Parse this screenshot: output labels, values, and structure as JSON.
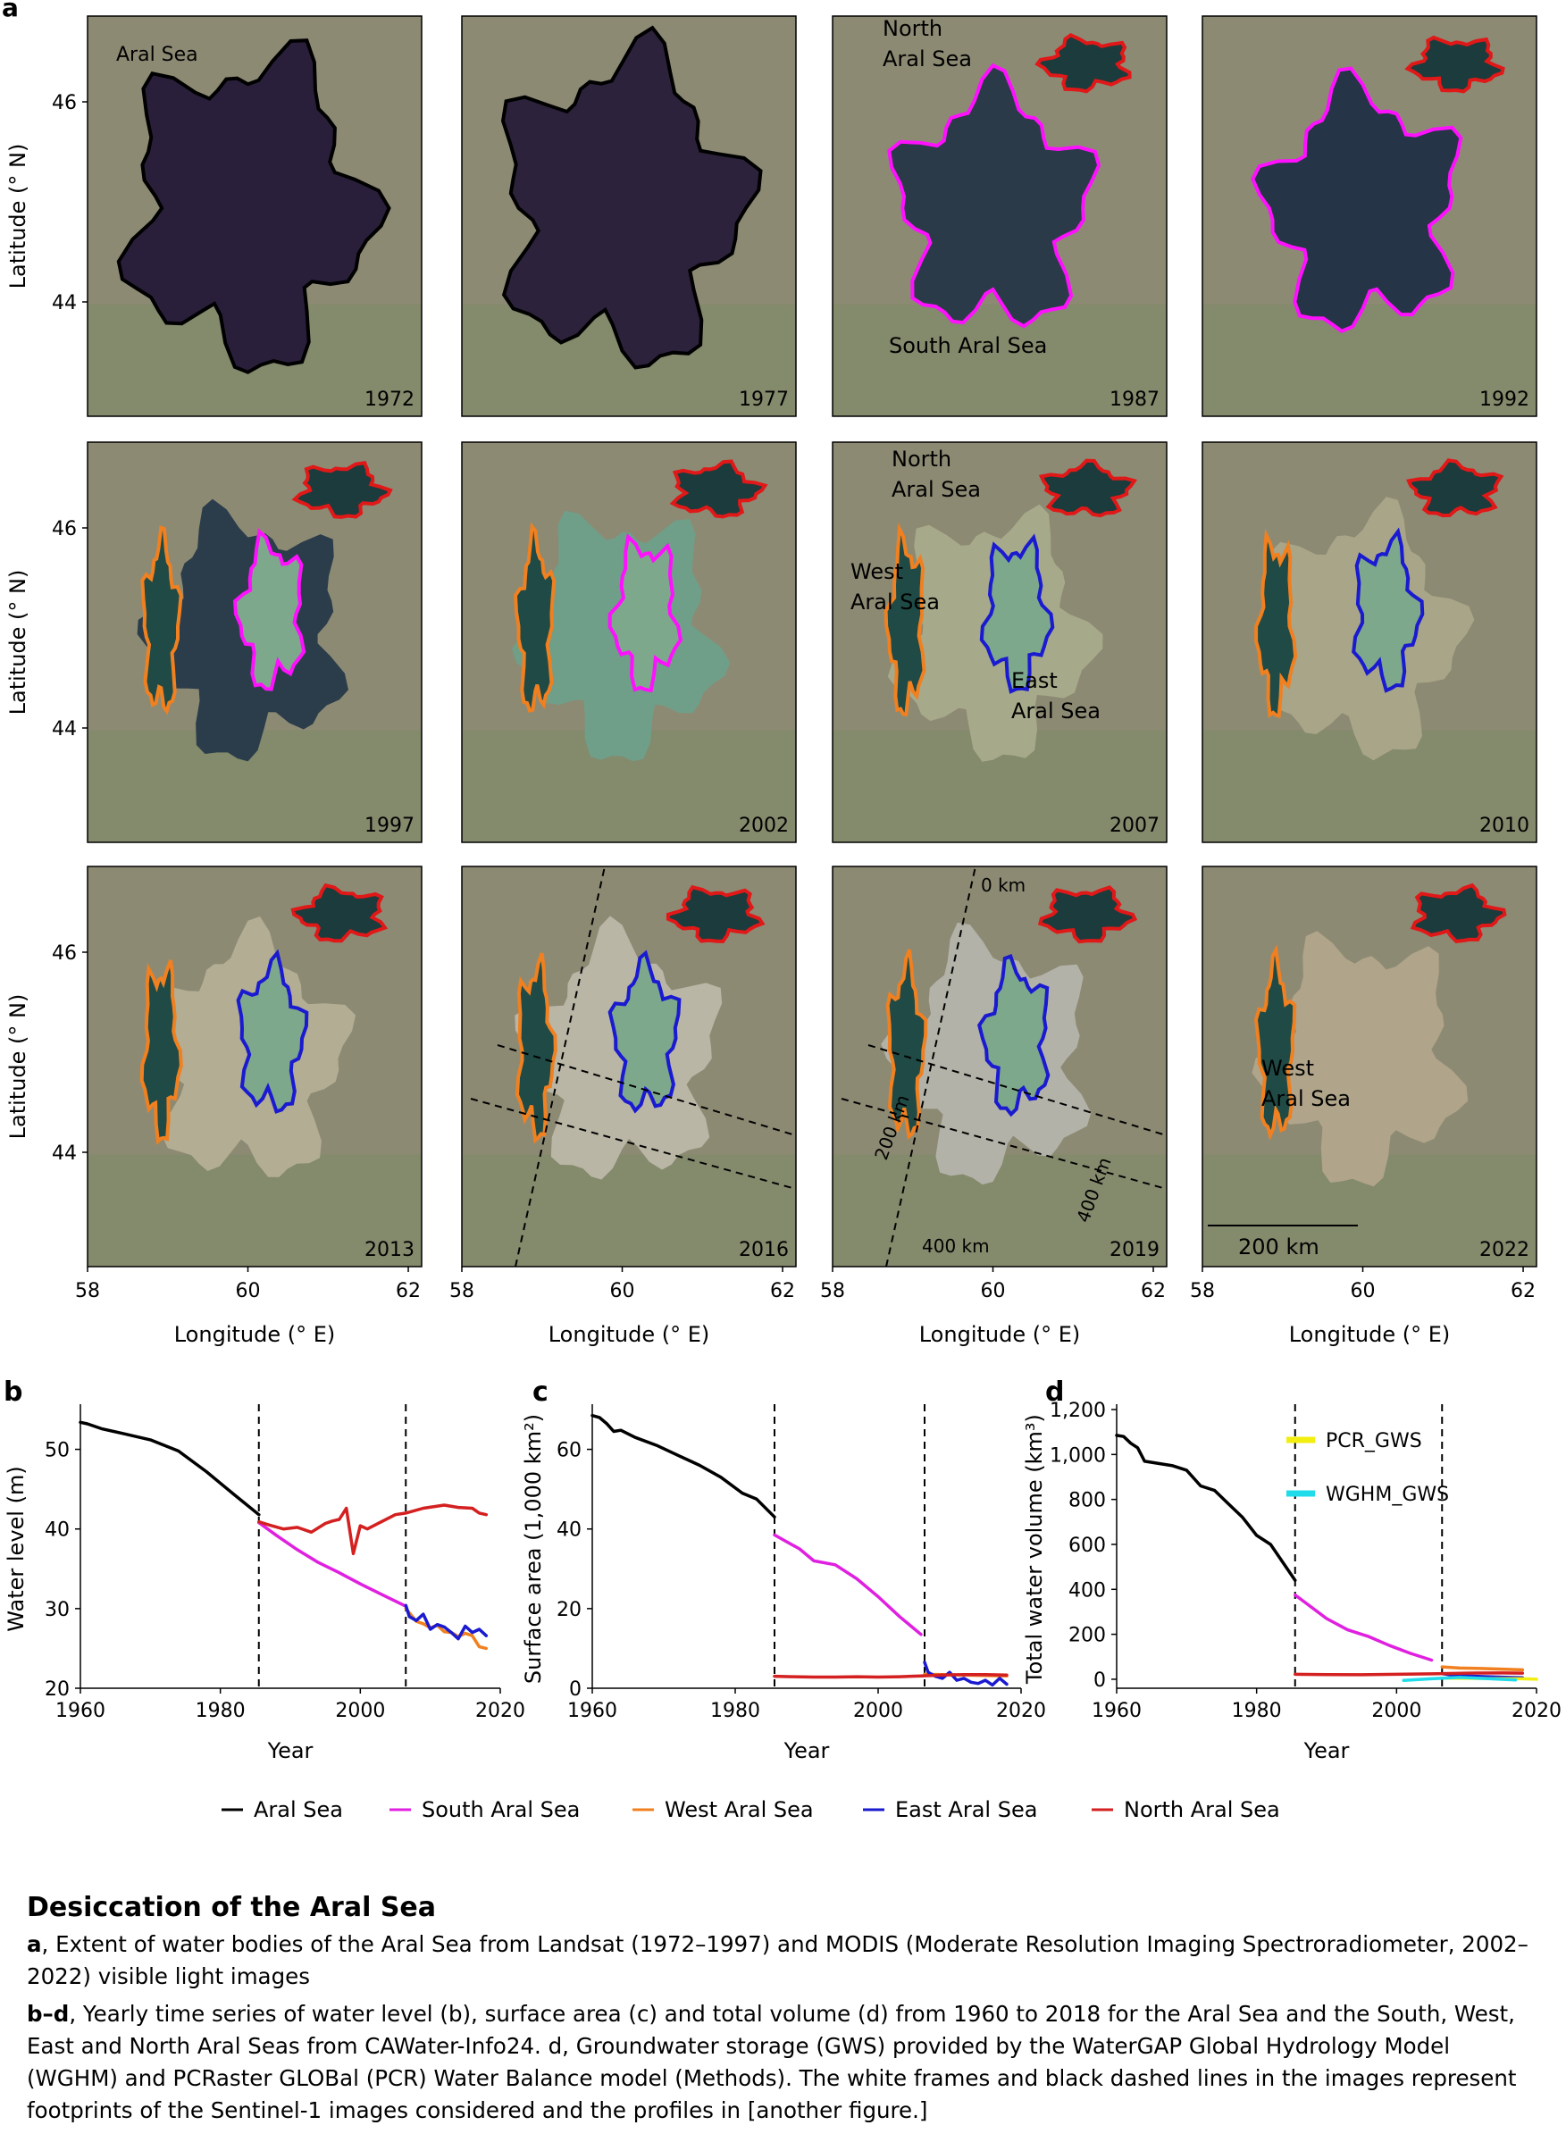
{
  "panel_a": {
    "label": "a",
    "tiles": [
      {
        "year": "1972",
        "labels": [
          "Aral Sea"
        ]
      },
      {
        "year": "1977",
        "labels": []
      },
      {
        "year": "1987",
        "labels": [
          "North",
          "Aral Sea",
          "South Aral Sea"
        ]
      },
      {
        "year": "1992",
        "labels": []
      },
      {
        "year": "1997",
        "labels": []
      },
      {
        "year": "2002",
        "labels": []
      },
      {
        "year": "2007",
        "labels": [
          "North",
          "Aral Sea",
          "West",
          "Aral Sea",
          "East",
          "Aral Sea"
        ]
      },
      {
        "year": "2010",
        "labels": []
      },
      {
        "year": "2013",
        "labels": []
      },
      {
        "year": "2016",
        "labels": []
      },
      {
        "year": "2019",
        "labels": [
          "0 km",
          "200 km",
          "400 km",
          "400 km"
        ]
      },
      {
        "year": "2022",
        "labels": [
          "West",
          "Aral Sea",
          "200 km"
        ]
      }
    ],
    "lat_ticks": [
      "46",
      "44"
    ],
    "lat_label": "Latitude (° N)",
    "lon_ticks": [
      "58",
      "60",
      "62"
    ],
    "lon_label": "Longitude (° E)"
  },
  "chart_data": [
    {
      "panel": "b",
      "type": "line",
      "xlabel": "Year",
      "ylabel": "Water level (m)",
      "xlim": [
        1960,
        2020
      ],
      "ylim": [
        20,
        55
      ],
      "xticks": [
        1960,
        1980,
        2000,
        2020
      ],
      "yticks": [
        20,
        30,
        40,
        50
      ],
      "vlines": [
        1985.5,
        2006.5
      ],
      "series": [
        {
          "name": "Aral Sea",
          "color": "#000000",
          "x": [
            1960,
            1961,
            1963,
            1966,
            1970,
            1974,
            1978,
            1982,
            1985.5
          ],
          "y": [
            53.4,
            53.2,
            52.6,
            52.0,
            51.2,
            49.8,
            47.2,
            44.3,
            41.8
          ]
        },
        {
          "name": "South Aral Sea",
          "color": "#e020e0",
          "x": [
            1985.5,
            1988,
            1991,
            1994,
            1997,
            2000,
            2003,
            2006.5
          ],
          "y": [
            40.8,
            39.2,
            37.4,
            35.8,
            34.5,
            33.1,
            31.8,
            30.3
          ]
        },
        {
          "name": "West Aral Sea",
          "color": "#f08020",
          "x": [
            2006.5,
            2008,
            2009,
            2010,
            2011,
            2012,
            2013,
            2014,
            2015,
            2016,
            2017,
            2018
          ],
          "y": [
            30.0,
            28.4,
            28.1,
            27.6,
            27.9,
            27.1,
            27.0,
            26.5,
            26.9,
            26.6,
            25.2,
            25.0
          ]
        },
        {
          "name": "East Aral Sea",
          "color": "#1a1ad0",
          "x": [
            2006.5,
            2007,
            2008,
            2009,
            2010,
            2011,
            2012,
            2013,
            2014,
            2015,
            2016,
            2017,
            2018
          ],
          "y": [
            30.4,
            29.0,
            28.5,
            29.3,
            27.4,
            28.0,
            27.7,
            27.0,
            26.2,
            27.8,
            27.0,
            27.4,
            26.6
          ]
        },
        {
          "name": "North Aral Sea",
          "color": "#d42020",
          "x": [
            1985.5,
            1987,
            1989,
            1991,
            1993,
            1995,
            1996,
            1997,
            1998,
            1999,
            2000,
            2001,
            2003,
            2005,
            2006.5,
            2009,
            2012,
            2014,
            2016,
            2017,
            2018
          ],
          "y": [
            40.9,
            40.5,
            40.0,
            40.2,
            39.6,
            40.7,
            41.0,
            41.2,
            42.6,
            36.9,
            40.4,
            40.0,
            40.9,
            41.8,
            42.0,
            42.6,
            43.0,
            42.7,
            42.6,
            42.0,
            41.8
          ]
        }
      ]
    },
    {
      "panel": "c",
      "type": "line",
      "xlabel": "Year",
      "ylabel": "Surface area (1,000 km²)",
      "xlim": [
        1960,
        2020
      ],
      "ylim": [
        0,
        70
      ],
      "xticks": [
        1960,
        1980,
        2000,
        2020
      ],
      "yticks": [
        0,
        20,
        40,
        60
      ],
      "vlines": [
        1985.5,
        2006.5
      ],
      "series": [
        {
          "name": "Aral Sea",
          "color": "#000000",
          "x": [
            1960,
            1961,
            1962,
            1963,
            1964,
            1966,
            1969,
            1972,
            1975,
            1978,
            1981,
            1983,
            1985.5
          ],
          "y": [
            68.5,
            68.0,
            66.5,
            64.5,
            64.8,
            63.0,
            61.0,
            58.5,
            56.0,
            53.0,
            49.0,
            47.5,
            43.0
          ]
        },
        {
          "name": "South Aral Sea",
          "color": "#e020e0",
          "x": [
            1985.5,
            1987,
            1989,
            1991,
            1994,
            1997,
            2000,
            2003,
            2006
          ],
          "y": [
            38.5,
            37.0,
            35.0,
            32.0,
            31.0,
            27.5,
            23.0,
            18.0,
            13.5
          ]
        },
        {
          "name": "West Aral Sea",
          "color": "#f08020",
          "x": [
            2006.5,
            2009,
            2012,
            2015,
            2018
          ],
          "y": [
            3.5,
            3.4,
            3.3,
            3.2,
            3.1
          ]
        },
        {
          "name": "East Aral Sea",
          "color": "#1a1ad0",
          "x": [
            2006.5,
            2007,
            2008,
            2009,
            2010,
            2011,
            2012,
            2013,
            2014,
            2015,
            2016,
            2017,
            2018
          ],
          "y": [
            6.5,
            4.0,
            3.0,
            2.5,
            4.0,
            2.0,
            2.5,
            1.5,
            1.2,
            2.0,
            0.8,
            2.5,
            1.0
          ]
        },
        {
          "name": "North Aral Sea",
          "color": "#d42020",
          "x": [
            1985.5,
            1988,
            1991,
            1994,
            1997,
            2000,
            2003,
            2006,
            2009,
            2012,
            2015,
            2018
          ],
          "y": [
            3.0,
            2.9,
            2.8,
            2.8,
            2.9,
            2.8,
            2.9,
            3.1,
            3.3,
            3.4,
            3.4,
            3.3
          ]
        }
      ]
    },
    {
      "panel": "d",
      "type": "line",
      "xlabel": "Year",
      "ylabel": "Total water volume (km³)",
      "xlim": [
        1960,
        2020
      ],
      "ylim": [
        -40,
        1200
      ],
      "xticks": [
        1960,
        1980,
        2000,
        2020
      ],
      "yticks": [
        0,
        200,
        400,
        600,
        800,
        1000,
        1200
      ],
      "ytick_labels": [
        "0",
        "200",
        "400",
        "600",
        "800",
        "1,000",
        "1,200"
      ],
      "vlines": [
        1985.5,
        2006.5
      ],
      "legend_inset": [
        {
          "name": "PCR_GWS",
          "color": "#f2ee10"
        },
        {
          "name": "WGHM_GWS",
          "color": "#20dcea"
        }
      ],
      "series": [
        {
          "name": "Aral Sea",
          "color": "#000000",
          "x": [
            1960,
            1961,
            1962,
            1963,
            1964,
            1966,
            1968,
            1970,
            1972,
            1974,
            1976,
            1978,
            1980,
            1982,
            1985.5
          ],
          "y": [
            1085,
            1080,
            1050,
            1030,
            970,
            960,
            950,
            930,
            860,
            840,
            780,
            720,
            640,
            600,
            440
          ]
        },
        {
          "name": "South Aral Sea",
          "color": "#e020e0",
          "x": [
            1985.5,
            1987,
            1990,
            1993,
            1996,
            1999,
            2002,
            2005
          ],
          "y": [
            375,
            340,
            270,
            220,
            190,
            150,
            115,
            85
          ]
        },
        {
          "name": "West Aral Sea",
          "color": "#f08020",
          "x": [
            2006.5,
            2009,
            2012,
            2015,
            2018
          ],
          "y": [
            55,
            50,
            48,
            45,
            42
          ]
        },
        {
          "name": "East Aral Sea",
          "color": "#1a1ad0",
          "x": [
            2006.5,
            2008,
            2010,
            2012,
            2014,
            2016,
            2018
          ],
          "y": [
            25,
            18,
            15,
            12,
            10,
            8,
            7
          ]
        },
        {
          "name": "North Aral Sea",
          "color": "#d42020",
          "x": [
            1985.5,
            1990,
            1995,
            2000,
            2005,
            2010,
            2015,
            2018
          ],
          "y": [
            22,
            21,
            20,
            22,
            24,
            27,
            28,
            27
          ]
        },
        {
          "name": "PCR_GWS",
          "color": "#f2ee10",
          "x": [
            2006.5,
            2010,
            2014,
            2018,
            2020
          ],
          "y": [
            5,
            4,
            3,
            2,
            0
          ]
        },
        {
          "name": "WGHM_GWS",
          "color": "#20dcea",
          "x": [
            2001,
            2005,
            2009,
            2013,
            2017
          ],
          "y": [
            -5,
            2,
            8,
            3,
            -3
          ]
        }
      ]
    }
  ],
  "legend": [
    {
      "name": "Aral Sea",
      "color": "#000000"
    },
    {
      "name": "South Aral Sea",
      "color": "#e020e0"
    },
    {
      "name": "West Aral Sea",
      "color": "#f08020"
    },
    {
      "name": "East Aral Sea",
      "color": "#1a1ad0"
    },
    {
      "name": "North Aral Sea",
      "color": "#d42020"
    }
  ],
  "caption": {
    "title": "Desiccation of the Aral Sea",
    "a_label": "a",
    "a_text": ", Extent of water bodies of the Aral Sea from Landsat (1972–1997) and MODIS (Moderate Resolution Imaging Spectroradiometer, 2002–2022) visible light images",
    "bd_label": "b–d",
    "bd_text": ", Yearly time series of water level (b), surface area (c) and total volume (d) from 1960 to 2018 for the Aral Sea and the South, West, East and North Aral Seas from CAWater-Info24. d, Groundwater storage (GWS) provided by the WaterGAP Global Hydrology Model (WGHM) and PCRaster GLOBal (PCR) Water Balance model (Methods). The white frames and black dashed lines in the images represent footprints of the Sentinel-1 images considered and the profiles in [another figure.]"
  }
}
